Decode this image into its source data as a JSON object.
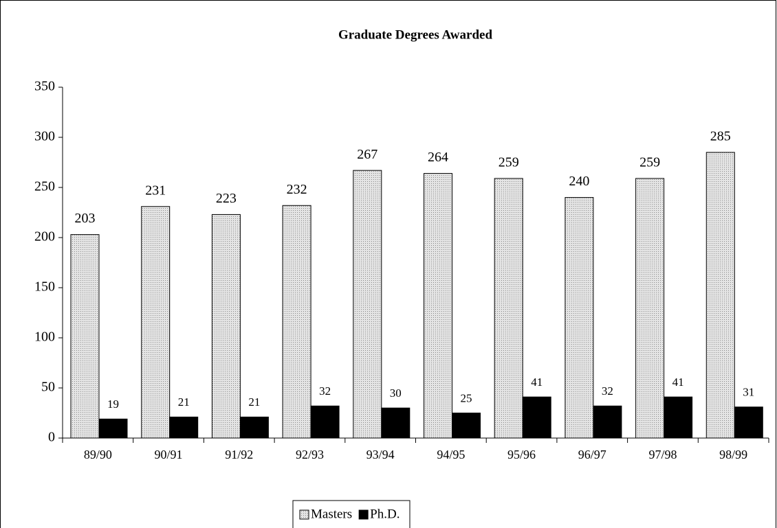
{
  "chart_data": {
    "type": "bar",
    "title": "Graduate Degrees Awarded",
    "categories": [
      "89/90",
      "90/91",
      "91/92",
      "92/93",
      "93/94",
      "94/95",
      "95/96",
      "96/97",
      "97/98",
      "98/99"
    ],
    "series": [
      {
        "name": "Masters",
        "color": "#e4e4e4",
        "values": [
          203,
          231,
          223,
          232,
          267,
          264,
          259,
          240,
          259,
          285
        ]
      },
      {
        "name": "Ph.D.",
        "color": "#000000",
        "values": [
          19,
          21,
          21,
          32,
          30,
          25,
          41,
          32,
          41,
          31
        ]
      }
    ],
    "ylim": [
      0,
      350
    ],
    "yticks": [
      0,
      50,
      100,
      150,
      200,
      250,
      300,
      350
    ],
    "legend": "bottom"
  }
}
